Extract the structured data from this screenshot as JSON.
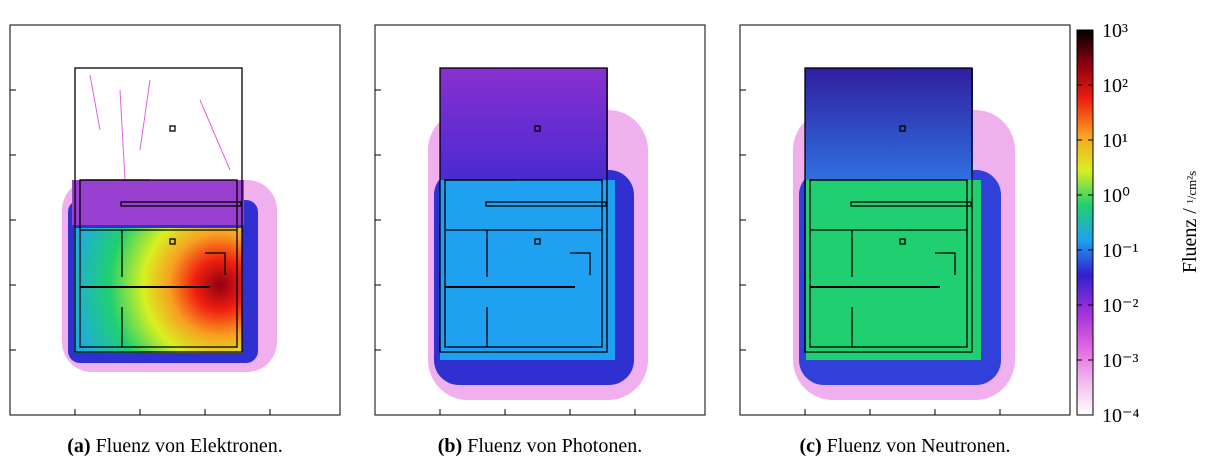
{
  "figure": {
    "panels": [
      {
        "label": "(a)",
        "caption": "Fluenz von Elektronen."
      },
      {
        "label": "(b)",
        "caption": "Fluenz von Photonen."
      },
      {
        "label": "(c)",
        "caption": "Fluenz von Neutronen."
      }
    ],
    "colorbar": {
      "label": "Fluenz /",
      "unit": "¹/cm²s",
      "scale": "log",
      "lim": [
        0.0001,
        1000
      ],
      "ticks": [
        {
          "value": 1000,
          "label": "10³"
        },
        {
          "value": 100,
          "label": "10²"
        },
        {
          "value": 10,
          "label": "10¹"
        },
        {
          "value": 1,
          "label": "10⁰"
        },
        {
          "value": 0.1,
          "label": "10⁻¹"
        },
        {
          "value": 0.01,
          "label": "10⁻²"
        },
        {
          "value": 0.001,
          "label": "10⁻³"
        },
        {
          "value": 0.0001,
          "label": "10⁻⁴"
        }
      ],
      "colors": [
        "#ffffff",
        "#f2b6ee",
        "#e060e0",
        "#9a30d8",
        "#3020d0",
        "#20a0f0",
        "#20d070",
        "#d8f020",
        "#f8a020",
        "#f02010",
        "#900010",
        "#000000"
      ]
    }
  }
}
